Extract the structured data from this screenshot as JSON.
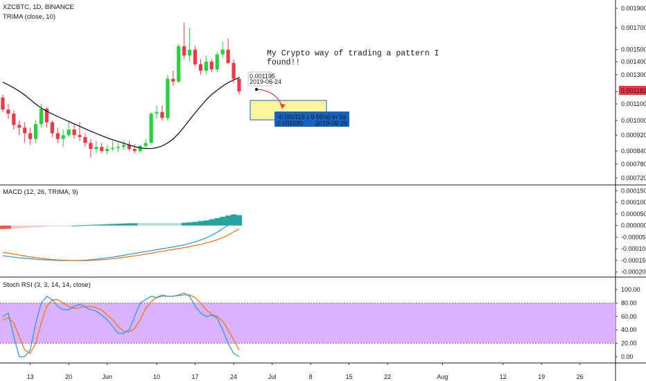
{
  "header": {
    "symbol": "XZCBTC, 1D, BINANCE",
    "indicator": "TRIMA (close, 10)"
  },
  "colors": {
    "up": "#26d13a",
    "down": "#f23645",
    "ma": "#131722",
    "macd_line": "#2196f3",
    "signal_line": "#ff6d00",
    "hist_dark": "#26a69a",
    "hist_light": "#b2dfdb",
    "hist_red": "#f8c6c9",
    "hist_red_dark": "#ef5350",
    "stoch_k": "#2196f3",
    "stoch_d": "#ff6d00",
    "stoch_band": "#d9b3ff",
    "target_box": "#fff59d",
    "target_label": "#1565c0",
    "last_price": "#f23645"
  },
  "annotation": {
    "text_line1": "My Crypto way of trading a pattern I",
    "text_line2": "found!!"
  },
  "measure": {
    "start_value": "0.001195",
    "start_date": "2019-06-24",
    "change": "-0.000115 (-9.66%) in 5d",
    "end_value": "0.001080",
    "end_date": "2019-06-29"
  },
  "last_price": "0.001182",
  "chart_data": [
    {
      "pane": "price",
      "type": "candlestick",
      "title": "XZCBTC, 1D, BINANCE",
      "scale": "log",
      "y_ticks": [
        0.0019,
        0.0017,
        0.0015,
        0.0014,
        0.0013,
        0.00118,
        0.0011,
        0.001,
        0.00092,
        0.00084,
        0.00078,
        0.00072
      ],
      "y_tick_labels": [
        "0.001900",
        "0.001700",
        "0.001500",
        "0.001400",
        "0.001300",
        "0.001182",
        "0.001100",
        "0.001000",
        "0.000920",
        "0.000840",
        "0.000780",
        "0.000720"
      ],
      "candles": [
        {
          "o": 0.00114,
          "h": 0.00116,
          "l": 0.00105,
          "c": 0.001065
        },
        {
          "o": 0.001065,
          "h": 0.0011,
          "l": 0.00101,
          "c": 0.00104
        },
        {
          "o": 0.00104,
          "h": 0.00106,
          "l": 0.00095,
          "c": 0.000975
        },
        {
          "o": 0.000975,
          "h": 0.001,
          "l": 0.00092,
          "c": 0.00096
        },
        {
          "o": 0.00096,
          "h": 0.00099,
          "l": 0.00088,
          "c": 0.00093
        },
        {
          "o": 0.00093,
          "h": 0.00096,
          "l": 0.00087,
          "c": 0.0009
        },
        {
          "o": 0.0009,
          "h": 0.001,
          "l": 0.00088,
          "c": 0.00098
        },
        {
          "o": 0.00098,
          "h": 0.0011,
          "l": 0.00096,
          "c": 0.00107
        },
        {
          "o": 0.00107,
          "h": 0.00108,
          "l": 0.00096,
          "c": 0.00099
        },
        {
          "o": 0.00099,
          "h": 0.001,
          "l": 0.00091,
          "c": 0.00093
        },
        {
          "o": 0.00093,
          "h": 0.00096,
          "l": 0.00088,
          "c": 0.0009
        },
        {
          "o": 0.0009,
          "h": 0.00095,
          "l": 0.00086,
          "c": 0.00092
        },
        {
          "o": 0.00092,
          "h": 0.001,
          "l": 0.00091,
          "c": 0.00095
        },
        {
          "o": 0.00095,
          "h": 0.00098,
          "l": 0.0009,
          "c": 0.00092
        },
        {
          "o": 0.00092,
          "h": 0.00099,
          "l": 0.00089,
          "c": 0.00091
        },
        {
          "o": 0.00091,
          "h": 0.00093,
          "l": 0.00086,
          "c": 0.00088
        },
        {
          "o": 0.00088,
          "h": 0.0009,
          "l": 0.00081,
          "c": 0.00085
        },
        {
          "o": 0.00085,
          "h": 0.00089,
          "l": 0.00083,
          "c": 0.00086
        },
        {
          "o": 0.00086,
          "h": 0.00088,
          "l": 0.00083,
          "c": 0.00084
        },
        {
          "o": 0.00084,
          "h": 0.00087,
          "l": 0.000825,
          "c": 0.00085
        },
        {
          "o": 0.00085,
          "h": 0.00089,
          "l": 0.00084,
          "c": 0.000855
        },
        {
          "o": 0.000855,
          "h": 0.00088,
          "l": 0.000835,
          "c": 0.00086
        },
        {
          "o": 0.00086,
          "h": 0.00089,
          "l": 0.000845,
          "c": 0.00087
        },
        {
          "o": 0.00087,
          "h": 0.00089,
          "l": 0.00084,
          "c": 0.00085
        },
        {
          "o": 0.00085,
          "h": 0.000875,
          "l": 0.00083,
          "c": 0.00084
        },
        {
          "o": 0.00084,
          "h": 0.00087,
          "l": 0.00083,
          "c": 0.000865
        },
        {
          "o": 0.000865,
          "h": 0.0009,
          "l": 0.00085,
          "c": 0.00088
        },
        {
          "o": 0.00088,
          "h": 0.00105,
          "l": 0.00087,
          "c": 0.00104
        },
        {
          "o": 0.00104,
          "h": 0.00109,
          "l": 0.00101,
          "c": 0.00105
        },
        {
          "o": 0.00105,
          "h": 0.00109,
          "l": 0.001,
          "c": 0.001015
        },
        {
          "o": 0.001015,
          "h": 0.0013,
          "l": 0.001,
          "c": 0.00127
        },
        {
          "o": 0.00127,
          "h": 0.00133,
          "l": 0.00122,
          "c": 0.00125
        },
        {
          "o": 0.00125,
          "h": 0.00155,
          "l": 0.00124,
          "c": 0.00153
        },
        {
          "o": 0.00153,
          "h": 0.00175,
          "l": 0.00142,
          "c": 0.00145
        },
        {
          "o": 0.00145,
          "h": 0.0017,
          "l": 0.0014,
          "c": 0.0015
        },
        {
          "o": 0.0015,
          "h": 0.00153,
          "l": 0.00136,
          "c": 0.00138
        },
        {
          "o": 0.00138,
          "h": 0.00142,
          "l": 0.0013,
          "c": 0.00133
        },
        {
          "o": 0.00133,
          "h": 0.00145,
          "l": 0.0013,
          "c": 0.0014
        },
        {
          "o": 0.0014,
          "h": 0.00142,
          "l": 0.00132,
          "c": 0.00134
        },
        {
          "o": 0.00134,
          "h": 0.00148,
          "l": 0.00132,
          "c": 0.00146
        },
        {
          "o": 0.00146,
          "h": 0.00157,
          "l": 0.00143,
          "c": 0.0015
        },
        {
          "o": 0.0015,
          "h": 0.0016,
          "l": 0.00138,
          "c": 0.00139
        },
        {
          "o": 0.00139,
          "h": 0.00142,
          "l": 0.00124,
          "c": 0.00127
        },
        {
          "o": 0.00127,
          "h": 0.00129,
          "l": 0.00116,
          "c": 0.001182
        }
      ],
      "trima": [
        0.001245,
        0.001227,
        0.001206,
        0.001183,
        0.001157,
        0.001128,
        0.001099,
        0.001074,
        0.001055,
        0.001038,
        0.001023,
        0.001009,
        0.000995,
        0.000981,
        0.000968,
        0.000954,
        0.000941,
        0.000929,
        0.000917,
        0.000906,
        0.000896,
        0.000887,
        0.000878,
        0.00087,
        0.000862,
        0.000856,
        0.000852,
        0.000852,
        0.000856,
        0.000865,
        0.00088,
        0.0009,
        0.00093,
        0.000965,
        0.001005,
        0.001045,
        0.001085,
        0.001125,
        0.00116,
        0.00119,
        0.001218,
        0.001242,
        0.001262,
        0.001278
      ]
    },
    {
      "pane": "macd",
      "type": "line",
      "title": "MACD (12, 26, TRIMA, 9)",
      "y_ticks": [
        0.00015,
        0.0001,
        5e-05,
        0,
        -5e-05,
        -0.0001,
        -0.00015,
        -0.0002
      ],
      "y_tick_labels": [
        "0.000150",
        "0.000100",
        "0.000050",
        "0.000000",
        "-0.000050",
        "-0.000100",
        "-0.000150",
        "-0.000200"
      ],
      "macd": [
        -0.00013,
        -0.000133,
        -0.000136,
        -0.000139,
        -0.000141,
        -0.000143,
        -0.000145,
        -0.000147,
        -0.000148,
        -0.000149,
        -0.00015,
        -0.000151,
        -0.000151,
        -0.000151,
        -0.00015,
        -0.000149,
        -0.000147,
        -0.000145,
        -0.000142,
        -0.000139,
        -0.000136,
        -0.000132,
        -0.000128,
        -0.000124,
        -0.00012,
        -0.000116,
        -0.000112,
        -0.000108,
        -0.000104,
        -0.0001,
        -9.6e-05,
        -9.2e-05,
        -8.8e-05,
        -8.3e-05,
        -7.7e-05,
        -7e-05,
        -6.2e-05,
        -5.3e-05,
        -4.2e-05,
        -2.9e-05,
        -1.4e-05,
        2e-06,
        2e-05,
        3e-05
      ],
      "signal": [
        -0.000115,
        -0.000119,
        -0.000123,
        -0.000127,
        -0.000131,
        -0.000135,
        -0.000138,
        -0.000141,
        -0.000144,
        -0.000146,
        -0.000148,
        -0.000149,
        -0.00015,
        -0.000151,
        -0.000151,
        -0.000151,
        -0.00015,
        -0.000149,
        -0.000147,
        -0.000145,
        -0.000143,
        -0.00014,
        -0.000137,
        -0.000134,
        -0.00013,
        -0.000127,
        -0.000123,
        -0.000119,
        -0.000115,
        -0.000111,
        -0.000107,
        -0.000103,
        -9.9e-05,
        -9.5e-05,
        -9.1e-05,
        -8.6e-05,
        -8.1e-05,
        -7.5e-05,
        -6.9e-05,
        -6.1e-05,
        -5.2e-05,
        -4.1e-05,
        -2.8e-05,
        -1.5e-05
      ],
      "histogram": [
        -1.5e-05,
        -1.4e-05,
        -1.3e-05,
        -1.2e-05,
        -1e-05,
        -8e-06,
        -7e-06,
        -6e-06,
        -4e-06,
        -3e-06,
        -2e-06,
        -2e-06,
        -1e-06,
        0.0,
        1e-06,
        2e-06,
        3e-06,
        4e-06,
        5e-06,
        6e-06,
        7e-06,
        8e-06,
        9e-06,
        1e-05,
        1e-05,
        1.1e-05,
        1.1e-05,
        1.1e-05,
        1.1e-05,
        1.1e-05,
        1.1e-05,
        1.1e-05,
        1.1e-05,
        1.2e-05,
        1.4e-05,
        1.6e-05,
        1.9e-05,
        2.2e-05,
        2.7e-05,
        3.2e-05,
        3.8e-05,
        4.3e-05,
        4.8e-05,
        4.5e-05
      ]
    },
    {
      "pane": "stoch_rsi",
      "type": "line",
      "title": "Stoch RSI (3, 3, 14, 14, close)",
      "y_ticks": [
        100,
        80,
        60,
        40,
        20,
        0
      ],
      "y_tick_labels": [
        "100.00",
        "80.00",
        "60.00",
        "40.00",
        "20.00",
        "0.00"
      ],
      "band": [
        20,
        80
      ],
      "k": [
        60,
        65,
        30,
        0,
        0,
        10,
        50,
        80,
        90,
        85,
        75,
        70,
        70,
        75,
        78,
        74,
        70,
        68,
        62,
        55,
        45,
        35,
        35,
        40,
        60,
        80,
        85,
        90,
        88,
        92,
        90,
        90,
        92,
        95,
        90,
        75,
        65,
        60,
        62,
        58,
        40,
        20,
        5,
        0
      ],
      "d": [
        55,
        58,
        50,
        30,
        10,
        5,
        20,
        50,
        75,
        85,
        85,
        80,
        75,
        72,
        73,
        75,
        75,
        73,
        70,
        62,
        55,
        45,
        38,
        37,
        42,
        55,
        72,
        82,
        88,
        90,
        90,
        90,
        91,
        92,
        92,
        88,
        80,
        70,
        63,
        60,
        53,
        40,
        25,
        10
      ]
    }
  ],
  "x_axis": {
    "labels": [
      "13",
      "20",
      "Jun",
      "10",
      "17",
      "24",
      "Jul",
      "8",
      "15",
      "22",
      "Aug",
      "12",
      "19",
      "26"
    ]
  }
}
